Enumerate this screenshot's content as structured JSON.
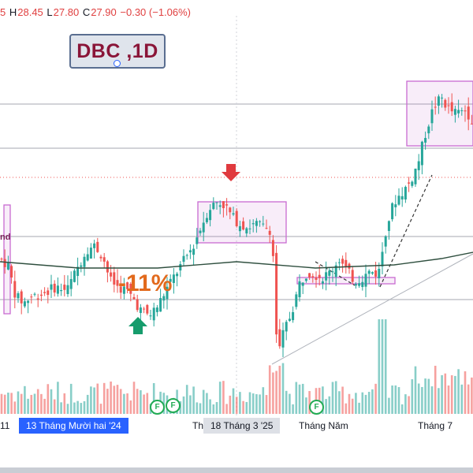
{
  "header": {
    "o_tail": "5",
    "h_key": "H",
    "h_val": "28.45",
    "l_key": "L",
    "l_val": "27.80",
    "c_key": "C",
    "c_val": "27.90",
    "change": "−0.30 (−1.06%)",
    "down_color": "#e04040"
  },
  "symbol_label": "DBC ,1D",
  "annotations": {
    "pct": "-11%",
    "side_text": "nd"
  },
  "badges": [
    "F",
    "F",
    "F"
  ],
  "xaxis": {
    "ticks": [
      "11",
      "Th",
      "Tháng Năm",
      "Tháng 7"
    ],
    "crosshair_left": "13 Tháng Mười hai '24",
    "crosshair_right": "18 Tháng 3 '25"
  },
  "colors": {
    "up": "#26a69a",
    "down": "#ef5350",
    "ma": "#2f4f3f",
    "box": "#c86bd1"
  },
  "chart_data": {
    "type": "candlestick",
    "symbol": "DBC",
    "interval": "1D",
    "last": {
      "high": 28.45,
      "low": 27.8,
      "close": 27.9,
      "change": -0.3,
      "change_pct": -1.06
    },
    "x_range": [
      "2024-11",
      "2025-07"
    ],
    "price_path": [
      [
        0,
        23.8
      ],
      [
        10,
        23.6
      ],
      [
        20,
        22.6
      ],
      [
        30,
        22.4
      ],
      [
        40,
        22.6
      ],
      [
        55,
        22.7
      ],
      [
        70,
        22.9
      ],
      [
        85,
        22.8
      ],
      [
        100,
        23.6
      ],
      [
        110,
        24.1
      ],
      [
        120,
        24.2
      ],
      [
        130,
        23.9
      ],
      [
        140,
        23.1
      ],
      [
        150,
        22.9
      ],
      [
        160,
        22.8
      ],
      [
        170,
        22.5
      ],
      [
        180,
        22.1
      ],
      [
        190,
        22.0
      ],
      [
        200,
        22.3
      ],
      [
        215,
        23.0
      ],
      [
        230,
        23.6
      ],
      [
        245,
        24.2
      ],
      [
        255,
        24.8
      ],
      [
        265,
        25.4
      ],
      [
        275,
        25.6
      ],
      [
        285,
        25.5
      ],
      [
        295,
        25.1
      ],
      [
        305,
        24.9
      ],
      [
        315,
        24.8
      ],
      [
        325,
        24.9
      ],
      [
        335,
        24.8
      ],
      [
        345,
        24.7
      ],
      [
        352,
        20.6
      ],
      [
        360,
        21.5
      ],
      [
        370,
        22.1
      ],
      [
        380,
        23.0
      ],
      [
        390,
        23.4
      ],
      [
        400,
        23.3
      ],
      [
        410,
        23.2
      ],
      [
        420,
        23.4
      ],
      [
        430,
        23.8
      ],
      [
        440,
        23.4
      ],
      [
        450,
        23.1
      ],
      [
        460,
        23.2
      ],
      [
        470,
        23.4
      ],
      [
        480,
        23.3
      ],
      [
        490,
        24.8
      ],
      [
        500,
        25.6
      ],
      [
        510,
        25.9
      ],
      [
        520,
        26.2
      ],
      [
        530,
        26.8
      ],
      [
        540,
        27.8
      ],
      [
        550,
        28.6
      ],
      [
        560,
        28.9
      ],
      [
        570,
        28.5
      ],
      [
        580,
        28.4
      ],
      [
        590,
        28.5
      ],
      [
        600,
        28.2
      ]
    ],
    "moving_average_path": [
      [
        0,
        23.7
      ],
      [
        100,
        23.5
      ],
      [
        200,
        23.5
      ],
      [
        300,
        23.7
      ],
      [
        400,
        23.5
      ],
      [
        500,
        23.6
      ],
      [
        560,
        23.8
      ],
      [
        600,
        24.0
      ]
    ],
    "horizontal_levels": [
      28.7,
      27.3,
      24.5,
      22.5
    ],
    "volume_profile": "per-bar volume histogram, colored by candle direction"
  }
}
